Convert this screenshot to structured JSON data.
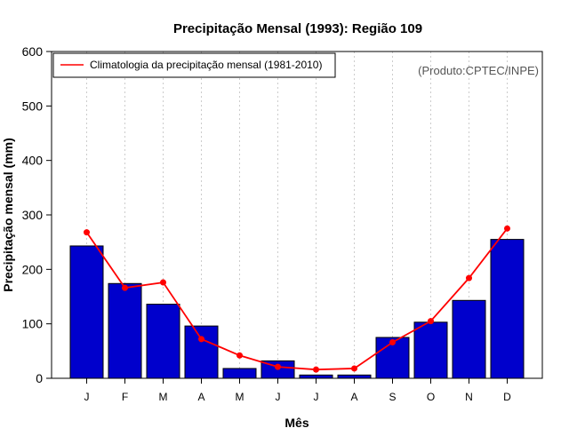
{
  "chart_data": {
    "type": "bar",
    "title": "Precipitação Mensal (1993): Região 109",
    "xlabel": "Mês",
    "ylabel": "Precipitação mensal (mm)",
    "ylim": [
      0,
      600
    ],
    "yticks": [
      0,
      100,
      200,
      300,
      400,
      500,
      600
    ],
    "categories": [
      "J",
      "F",
      "M",
      "A",
      "M",
      "J",
      "J",
      "A",
      "S",
      "O",
      "N",
      "D"
    ],
    "series": [
      {
        "name": "Precipitação mensal 1993",
        "kind": "bar",
        "color": "#0000cc",
        "values": [
          243,
          174,
          136,
          96,
          18,
          32,
          6,
          6,
          75,
          103,
          143,
          255
        ]
      },
      {
        "name": "Climatologia da precipitação mensal (1981-2010)",
        "kind": "line",
        "color": "#ff0000",
        "values": [
          268,
          166,
          176,
          72,
          42,
          21,
          16,
          18,
          66,
          105,
          184,
          275
        ]
      }
    ],
    "legend": {
      "position": "top-left",
      "entries": [
        "Climatologia da precipitação mensal (1981-2010)"
      ]
    },
    "annotation": "(Produto:CPTEC/INPE)",
    "grid": "vertical dotted"
  }
}
